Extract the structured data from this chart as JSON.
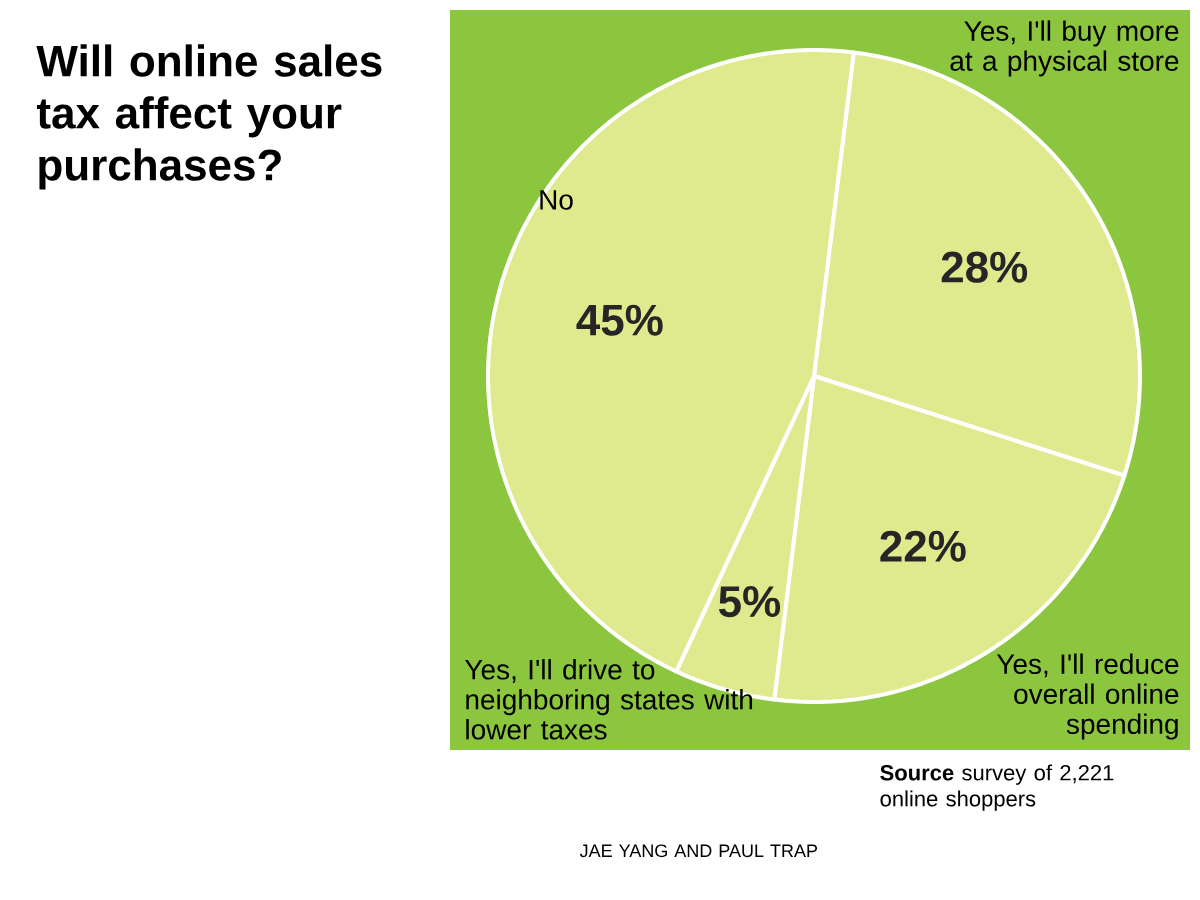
{
  "chart_data": {
    "type": "pie",
    "title": "Will online sales tax affect your purchases?",
    "categories": [
      "Yes, I'll buy more at a physical store",
      "Yes, I'll reduce overall online spending",
      "Yes, I'll drive to neighboring states with lower taxes",
      "No"
    ],
    "values": [
      28,
      22,
      5,
      45
    ],
    "value_labels": [
      "28%",
      "22%",
      "5%",
      "45%"
    ],
    "colors": [
      "#dfea8e",
      "#dfea8e",
      "#dfea8e",
      "#dfea8e"
    ],
    "annotations": [
      "**Source** survey of 2,221 online shoppers",
      "JAE YANG AND PAUL TRAP"
    ]
  }
}
